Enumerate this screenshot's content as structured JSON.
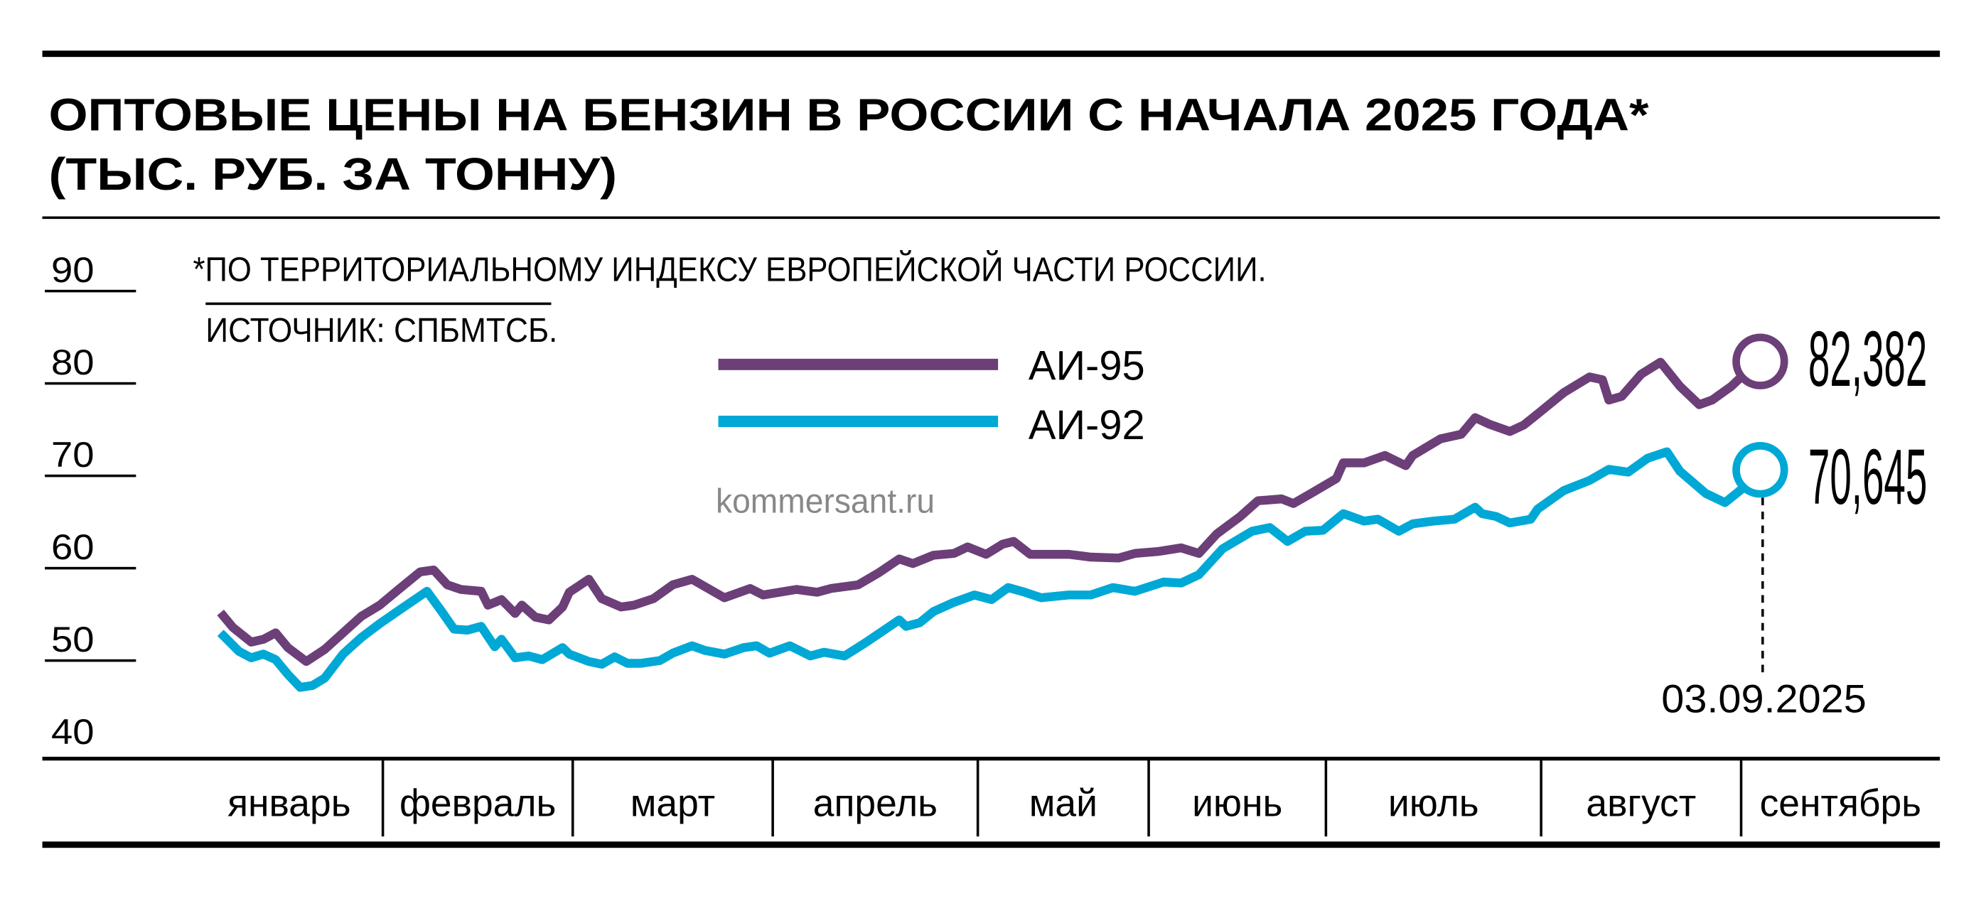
{
  "title_line1": "ОПТОВЫЕ ЦЕНЫ НА БЕНЗИН В РОССИИ С НАЧАЛА 2025 ГОДА*",
  "title_line2": "(ТЫС. РУБ. ЗА ТОННУ)",
  "footnote": "*ПО ТЕРРИТОРИАЛЬНОМУ ИНДЕКСУ ЕВРОПЕЙСКОЙ ЧАСТИ РОССИИ.",
  "source": "ИСТОЧНИК: СПБМТСБ.",
  "watermark": "kommersant.ru",
  "colors": {
    "ai95": "#6c3f79",
    "ai92": "#00a8d6"
  },
  "chart_data": {
    "type": "line",
    "title": "ОПТОВЫЕ ЦЕНЫ НА БЕНЗИН В РОССИИ С НАЧАЛА 2025 ГОДА* (ТЫС. РУБ. ЗА ТОННУ)",
    "xlabel": "",
    "ylabel": "",
    "ylim": [
      40,
      90
    ],
    "yticks": [
      "40",
      "50",
      "60",
      "70",
      "80",
      "90"
    ],
    "x_months": [
      "январь",
      "февраль",
      "март",
      "апрель",
      "май",
      "июнь",
      "июль",
      "август",
      "сентябрь"
    ],
    "grid": false,
    "legend": "top-center",
    "annotation_date": "03.09.2025",
    "series": [
      {
        "name": "АИ-95",
        "color": "#6c3f79",
        "end_label": "82,382",
        "points": [
          [
            "2025-01-05",
            55.2
          ],
          [
            "2025-01-07",
            53.6
          ],
          [
            "2025-01-10",
            52.0
          ],
          [
            "2025-01-12",
            52.3
          ],
          [
            "2025-01-14",
            53.0
          ],
          [
            "2025-01-16",
            51.4
          ],
          [
            "2025-01-19",
            49.9
          ],
          [
            "2025-01-22",
            51.2
          ],
          [
            "2025-01-25",
            53.0
          ],
          [
            "2025-01-28",
            54.8
          ],
          [
            "2025-01-31",
            56.0
          ],
          [
            "2025-02-03",
            57.8
          ],
          [
            "2025-02-06",
            59.6
          ],
          [
            "2025-02-08",
            59.8
          ],
          [
            "2025-02-10",
            58.2
          ],
          [
            "2025-02-12",
            57.7
          ],
          [
            "2025-02-15",
            57.5
          ],
          [
            "2025-02-16",
            56.0
          ],
          [
            "2025-02-18",
            56.6
          ],
          [
            "2025-02-20",
            55.1
          ],
          [
            "2025-02-21",
            56.0
          ],
          [
            "2025-02-23",
            54.7
          ],
          [
            "2025-02-25",
            54.4
          ],
          [
            "2025-02-27",
            55.8
          ],
          [
            "2025-02-28",
            57.4
          ],
          [
            "2025-03-03",
            58.8
          ],
          [
            "2025-03-05",
            56.7
          ],
          [
            "2025-03-08",
            55.8
          ],
          [
            "2025-03-10",
            56.0
          ],
          [
            "2025-03-13",
            56.7
          ],
          [
            "2025-03-16",
            58.2
          ],
          [
            "2025-03-19",
            58.8
          ],
          [
            "2025-03-24",
            56.8
          ],
          [
            "2025-03-28",
            57.8
          ],
          [
            "2025-03-30",
            57.1
          ],
          [
            "2025-04-04",
            57.7
          ],
          [
            "2025-04-07",
            57.4
          ],
          [
            "2025-04-09",
            57.8
          ],
          [
            "2025-04-13",
            58.2
          ],
          [
            "2025-04-16",
            59.5
          ],
          [
            "2025-04-19",
            61.0
          ],
          [
            "2025-04-21",
            60.5
          ],
          [
            "2025-04-24",
            61.4
          ],
          [
            "2025-04-27",
            61.6
          ],
          [
            "2025-04-29",
            62.3
          ],
          [
            "2025-05-02",
            61.5
          ],
          [
            "2025-05-05",
            62.6
          ],
          [
            "2025-05-07",
            62.9
          ],
          [
            "2025-05-10",
            61.5
          ],
          [
            "2025-05-13",
            61.5
          ],
          [
            "2025-05-17",
            61.5
          ],
          [
            "2025-05-21",
            61.2
          ],
          [
            "2025-05-26",
            61.1
          ],
          [
            "2025-05-29",
            61.6
          ],
          [
            "2025-06-02",
            61.8
          ],
          [
            "2025-06-06",
            62.2
          ],
          [
            "2025-06-09",
            61.6
          ],
          [
            "2025-06-12",
            63.7
          ],
          [
            "2025-06-16",
            65.6
          ],
          [
            "2025-06-19",
            67.3
          ],
          [
            "2025-06-23",
            67.5
          ],
          [
            "2025-06-25",
            67.0
          ],
          [
            "2025-06-28",
            68.1
          ],
          [
            "2025-07-02",
            69.7
          ],
          [
            "2025-07-03",
            71.4
          ],
          [
            "2025-07-06",
            71.4
          ],
          [
            "2025-07-09",
            72.2
          ],
          [
            "2025-07-12",
            71.1
          ],
          [
            "2025-07-13",
            72.2
          ],
          [
            "2025-07-17",
            74.0
          ],
          [
            "2025-07-20",
            74.5
          ],
          [
            "2025-07-22",
            76.3
          ],
          [
            "2025-07-24",
            75.6
          ],
          [
            "2025-07-27",
            74.8
          ],
          [
            "2025-07-29",
            75.5
          ],
          [
            "2025-07-31",
            76.7
          ],
          [
            "2025-08-04",
            79.0
          ],
          [
            "2025-08-08",
            80.7
          ],
          [
            "2025-08-10",
            80.4
          ],
          [
            "2025-08-11",
            78.2
          ],
          [
            "2025-08-13",
            78.6
          ],
          [
            "2025-08-16",
            81.0
          ],
          [
            "2025-08-19",
            82.3
          ],
          [
            "2025-08-22",
            79.7
          ],
          [
            "2025-08-25",
            77.7
          ],
          [
            "2025-08-27",
            78.2
          ],
          [
            "2025-08-30",
            79.7
          ],
          [
            "2025-09-03",
            82.382
          ]
        ]
      },
      {
        "name": "АИ-92",
        "color": "#00a8d6",
        "end_label": "70,645",
        "points": [
          [
            "2025-01-05",
            53.0
          ],
          [
            "2025-01-08",
            51.0
          ],
          [
            "2025-01-10",
            50.3
          ],
          [
            "2025-01-12",
            50.7
          ],
          [
            "2025-01-14",
            50.1
          ],
          [
            "2025-01-16",
            48.5
          ],
          [
            "2025-01-18",
            47.1
          ],
          [
            "2025-01-20",
            47.3
          ],
          [
            "2025-01-22",
            48.1
          ],
          [
            "2025-01-25",
            50.7
          ],
          [
            "2025-01-28",
            52.5
          ],
          [
            "2025-01-31",
            54.0
          ],
          [
            "2025-02-03",
            55.5
          ],
          [
            "2025-02-07",
            57.5
          ],
          [
            "2025-02-09",
            55.5
          ],
          [
            "2025-02-11",
            53.4
          ],
          [
            "2025-02-13",
            53.3
          ],
          [
            "2025-02-15",
            53.7
          ],
          [
            "2025-02-17",
            51.5
          ],
          [
            "2025-02-18",
            52.3
          ],
          [
            "2025-02-20",
            50.3
          ],
          [
            "2025-02-22",
            50.5
          ],
          [
            "2025-02-24",
            50.1
          ],
          [
            "2025-02-27",
            51.4
          ],
          [
            "2025-02-28",
            50.7
          ],
          [
            "2025-03-03",
            49.9
          ],
          [
            "2025-03-05",
            49.6
          ],
          [
            "2025-03-07",
            50.4
          ],
          [
            "2025-03-09",
            49.7
          ],
          [
            "2025-03-11",
            49.7
          ],
          [
            "2025-03-14",
            50.0
          ],
          [
            "2025-03-16",
            50.8
          ],
          [
            "2025-03-19",
            51.6
          ],
          [
            "2025-03-21",
            51.1
          ],
          [
            "2025-03-24",
            50.7
          ],
          [
            "2025-03-27",
            51.4
          ],
          [
            "2025-03-29",
            51.6
          ],
          [
            "2025-03-31",
            50.8
          ],
          [
            "2025-04-03",
            51.6
          ],
          [
            "2025-04-06",
            50.5
          ],
          [
            "2025-04-08",
            50.9
          ],
          [
            "2025-04-11",
            50.5
          ],
          [
            "2025-04-14",
            51.9
          ],
          [
            "2025-04-17",
            53.4
          ],
          [
            "2025-04-19",
            54.4
          ],
          [
            "2025-04-20",
            53.7
          ],
          [
            "2025-04-22",
            54.1
          ],
          [
            "2025-04-24",
            55.3
          ],
          [
            "2025-04-27",
            56.3
          ],
          [
            "2025-04-30",
            57.1
          ],
          [
            "2025-05-03",
            56.6
          ],
          [
            "2025-05-06",
            57.9
          ],
          [
            "2025-05-09",
            57.4
          ],
          [
            "2025-05-12",
            56.8
          ],
          [
            "2025-05-17",
            57.1
          ],
          [
            "2025-05-21",
            57.1
          ],
          [
            "2025-05-25",
            57.9
          ],
          [
            "2025-05-29",
            57.5
          ],
          [
            "2025-06-03",
            58.5
          ],
          [
            "2025-06-06",
            58.4
          ],
          [
            "2025-06-09",
            59.3
          ],
          [
            "2025-06-13",
            62.1
          ],
          [
            "2025-06-18",
            64.0
          ],
          [
            "2025-06-21",
            64.4
          ],
          [
            "2025-06-24",
            62.9
          ],
          [
            "2025-06-27",
            64.0
          ],
          [
            "2025-06-30",
            64.1
          ],
          [
            "2025-07-03",
            65.9
          ],
          [
            "2025-07-06",
            65.1
          ],
          [
            "2025-07-08",
            65.3
          ],
          [
            "2025-07-11",
            64.0
          ],
          [
            "2025-07-13",
            64.8
          ],
          [
            "2025-07-16",
            65.1
          ],
          [
            "2025-07-19",
            65.3
          ],
          [
            "2025-07-22",
            66.6
          ],
          [
            "2025-07-23",
            65.9
          ],
          [
            "2025-07-25",
            65.6
          ],
          [
            "2025-07-27",
            64.9
          ],
          [
            "2025-07-30",
            65.3
          ],
          [
            "2025-07-31",
            66.4
          ],
          [
            "2025-08-04",
            68.4
          ],
          [
            "2025-08-08",
            69.5
          ],
          [
            "2025-08-11",
            70.7
          ],
          [
            "2025-08-14",
            70.4
          ],
          [
            "2025-08-17",
            71.9
          ],
          [
            "2025-08-20",
            72.6
          ],
          [
            "2025-08-22",
            70.5
          ],
          [
            "2025-08-26",
            68.1
          ],
          [
            "2025-08-29",
            67.1
          ],
          [
            "2025-09-01",
            68.8
          ],
          [
            "2025-09-03",
            70.645
          ]
        ]
      }
    ]
  }
}
